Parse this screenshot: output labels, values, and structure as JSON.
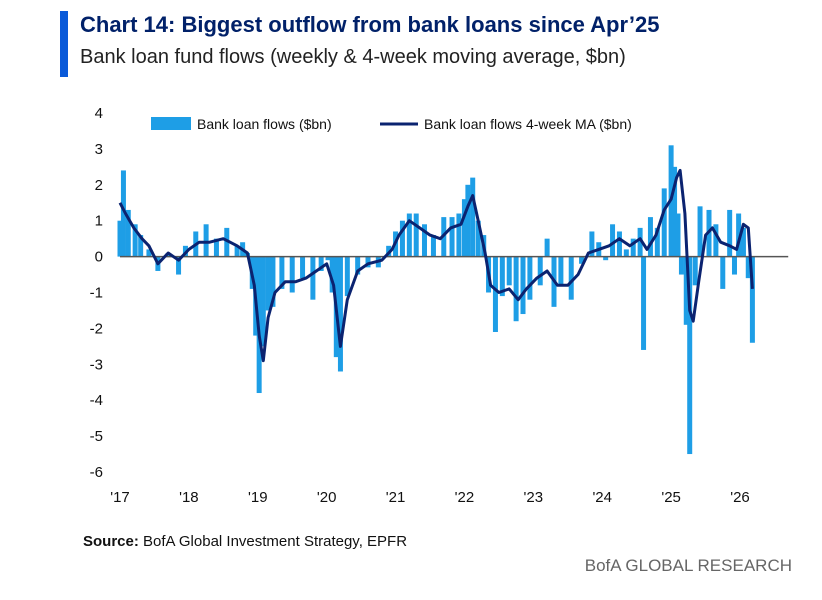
{
  "header": {
    "title": "Chart 14: Biggest outflow from bank loans since Apr’25",
    "subtitle": "Bank loan fund flows (weekly & 4-week moving average, $bn)"
  },
  "footer": {
    "source_label": "Source:",
    "source_text": " BofA Global Investment Strategy, EPFR",
    "brand": "BofA GLOBAL RESEARCH"
  },
  "colors": {
    "accent": "#0a5ad9",
    "title": "#012169",
    "bars": "#1e9ee6",
    "ma_line": "#0b2370",
    "zero_line": "#555555"
  },
  "chart_data": {
    "type": "bar",
    "title": "Bank loan fund flows (weekly & 4-week moving average, $bn)",
    "xlabel": "",
    "ylabel": "$bn",
    "ylim": [
      -6,
      4
    ],
    "xlim": [
      2017.0,
      2026.7
    ],
    "yticks": [
      "4",
      "3",
      "2",
      "1",
      "0",
      "-1",
      "-2",
      "-3",
      "-4",
      "-5",
      "-6"
    ],
    "xticks": [
      {
        "year": 2017,
        "label": "'17"
      },
      {
        "year": 2018,
        "label": "'18"
      },
      {
        "year": 2019,
        "label": "'19"
      },
      {
        "year": 2020,
        "label": "'20"
      },
      {
        "year": 2021,
        "label": "'21"
      },
      {
        "year": 2022,
        "label": "'22"
      },
      {
        "year": 2023,
        "label": "'23"
      },
      {
        "year": 2024,
        "label": "'24"
      },
      {
        "year": 2025,
        "label": "'25"
      },
      {
        "year": 2026,
        "label": "'26"
      }
    ],
    "legend": [
      "Bank loan flows ($bn)",
      "Bank loan flows 4-week MA ($bn)"
    ],
    "legend_position": "top",
    "series": [
      {
        "name": "Bank loan flows ($bn)",
        "style": "bars",
        "points": [
          [
            2017.0,
            1.0
          ],
          [
            2017.05,
            2.4
          ],
          [
            2017.12,
            1.3
          ],
          [
            2017.22,
            0.9
          ],
          [
            2017.3,
            0.6
          ],
          [
            2017.42,
            0.2
          ],
          [
            2017.55,
            -0.4
          ],
          [
            2017.7,
            0.1
          ],
          [
            2017.85,
            -0.5
          ],
          [
            2017.95,
            0.3
          ],
          [
            2018.1,
            0.7
          ],
          [
            2018.25,
            0.9
          ],
          [
            2018.4,
            0.5
          ],
          [
            2018.55,
            0.8
          ],
          [
            2018.7,
            0.3
          ],
          [
            2018.78,
            0.4
          ],
          [
            2018.85,
            0.1
          ],
          [
            2018.92,
            -0.9
          ],
          [
            2018.97,
            -2.2
          ],
          [
            2019.02,
            -3.8
          ],
          [
            2019.08,
            -2.5
          ],
          [
            2019.15,
            -1.5
          ],
          [
            2019.22,
            -1.4
          ],
          [
            2019.35,
            -0.9
          ],
          [
            2019.5,
            -1.0
          ],
          [
            2019.65,
            -0.6
          ],
          [
            2019.8,
            -1.2
          ],
          [
            2019.92,
            -0.4
          ],
          [
            2020.02,
            -0.1
          ],
          [
            2020.08,
            -1.0
          ],
          [
            2020.14,
            -2.8
          ],
          [
            2020.2,
            -3.2
          ],
          [
            2020.3,
            -1.1
          ],
          [
            2020.45,
            -0.5
          ],
          [
            2020.6,
            -0.3
          ],
          [
            2020.75,
            -0.3
          ],
          [
            2020.9,
            0.3
          ],
          [
            2021.0,
            0.7
          ],
          [
            2021.1,
            1.0
          ],
          [
            2021.2,
            1.2
          ],
          [
            2021.3,
            1.2
          ],
          [
            2021.42,
            0.9
          ],
          [
            2021.55,
            0.6
          ],
          [
            2021.7,
            1.1
          ],
          [
            2021.82,
            1.1
          ],
          [
            2021.92,
            1.2
          ],
          [
            2022.0,
            1.6
          ],
          [
            2022.05,
            2.0
          ],
          [
            2022.12,
            2.2
          ],
          [
            2022.2,
            1.0
          ],
          [
            2022.28,
            0.6
          ],
          [
            2022.35,
            -1.0
          ],
          [
            2022.45,
            -2.1
          ],
          [
            2022.55,
            -1.1
          ],
          [
            2022.65,
            -0.8
          ],
          [
            2022.75,
            -1.8
          ],
          [
            2022.85,
            -1.6
          ],
          [
            2022.95,
            -1.2
          ],
          [
            2023.1,
            -0.8
          ],
          [
            2023.2,
            0.5
          ],
          [
            2023.3,
            -1.4
          ],
          [
            2023.4,
            -0.8
          ],
          [
            2023.55,
            -1.2
          ],
          [
            2023.7,
            -0.2
          ],
          [
            2023.85,
            0.7
          ],
          [
            2023.95,
            0.4
          ],
          [
            2024.05,
            -0.1
          ],
          [
            2024.15,
            0.9
          ],
          [
            2024.25,
            0.7
          ],
          [
            2024.35,
            0.2
          ],
          [
            2024.45,
            0.5
          ],
          [
            2024.55,
            0.8
          ],
          [
            2024.6,
            -2.6
          ],
          [
            2024.7,
            1.1
          ],
          [
            2024.8,
            0.8
          ],
          [
            2024.9,
            1.9
          ],
          [
            2025.0,
            3.1
          ],
          [
            2025.05,
            2.5
          ],
          [
            2025.1,
            1.2
          ],
          [
            2025.15,
            -0.5
          ],
          [
            2025.22,
            -1.9
          ],
          [
            2025.27,
            -5.5
          ],
          [
            2025.35,
            -0.8
          ],
          [
            2025.42,
            1.4
          ],
          [
            2025.55,
            1.3
          ],
          [
            2025.65,
            0.9
          ],
          [
            2025.75,
            -0.9
          ],
          [
            2025.85,
            1.3
          ],
          [
            2025.92,
            -0.5
          ],
          [
            2025.98,
            1.2
          ],
          [
            2026.05,
            0.8
          ],
          [
            2026.12,
            -0.6
          ],
          [
            2026.18,
            -2.4
          ]
        ]
      },
      {
        "name": "Bank loan flows 4-week MA ($bn)",
        "style": "line",
        "points": [
          [
            2017.0,
            1.5
          ],
          [
            2017.08,
            1.2
          ],
          [
            2017.2,
            0.8
          ],
          [
            2017.32,
            0.5
          ],
          [
            2017.42,
            0.3
          ],
          [
            2017.55,
            -0.2
          ],
          [
            2017.7,
            0.1
          ],
          [
            2017.85,
            -0.1
          ],
          [
            2018.0,
            0.2
          ],
          [
            2018.15,
            0.4
          ],
          [
            2018.3,
            0.4
          ],
          [
            2018.5,
            0.5
          ],
          [
            2018.7,
            0.3
          ],
          [
            2018.85,
            0.1
          ],
          [
            2018.95,
            -0.8
          ],
          [
            2019.02,
            -2.2
          ],
          [
            2019.08,
            -2.9
          ],
          [
            2019.15,
            -1.7
          ],
          [
            2019.25,
            -1.0
          ],
          [
            2019.4,
            -0.7
          ],
          [
            2019.55,
            -0.7
          ],
          [
            2019.7,
            -0.6
          ],
          [
            2019.85,
            -0.4
          ],
          [
            2020.0,
            -0.2
          ],
          [
            2020.1,
            -0.8
          ],
          [
            2020.2,
            -2.5
          ],
          [
            2020.3,
            -1.2
          ],
          [
            2020.45,
            -0.4
          ],
          [
            2020.6,
            -0.2
          ],
          [
            2020.8,
            -0.1
          ],
          [
            2020.95,
            0.2
          ],
          [
            2021.05,
            0.6
          ],
          [
            2021.2,
            1.0
          ],
          [
            2021.35,
            0.8
          ],
          [
            2021.5,
            0.6
          ],
          [
            2021.65,
            0.5
          ],
          [
            2021.8,
            0.8
          ],
          [
            2021.95,
            0.9
          ],
          [
            2022.05,
            1.4
          ],
          [
            2022.12,
            1.7
          ],
          [
            2022.2,
            1.0
          ],
          [
            2022.3,
            0.1
          ],
          [
            2022.38,
            -0.8
          ],
          [
            2022.5,
            -1.0
          ],
          [
            2022.65,
            -0.9
          ],
          [
            2022.78,
            -1.2
          ],
          [
            2022.9,
            -0.9
          ],
          [
            2023.05,
            -0.6
          ],
          [
            2023.2,
            -0.4
          ],
          [
            2023.35,
            -0.8
          ],
          [
            2023.5,
            -0.8
          ],
          [
            2023.65,
            -0.5
          ],
          [
            2023.8,
            0.1
          ],
          [
            2023.95,
            0.2
          ],
          [
            2024.1,
            0.3
          ],
          [
            2024.25,
            0.5
          ],
          [
            2024.4,
            0.3
          ],
          [
            2024.55,
            0.5
          ],
          [
            2024.65,
            0.2
          ],
          [
            2024.78,
            0.6
          ],
          [
            2024.9,
            1.3
          ],
          [
            2025.0,
            1.6
          ],
          [
            2025.08,
            2.2
          ],
          [
            2025.13,
            2.4
          ],
          [
            2025.2,
            1.2
          ],
          [
            2025.27,
            -1.5
          ],
          [
            2025.32,
            -1.8
          ],
          [
            2025.4,
            -0.7
          ],
          [
            2025.5,
            0.6
          ],
          [
            2025.6,
            0.8
          ],
          [
            2025.72,
            0.4
          ],
          [
            2025.85,
            0.3
          ],
          [
            2025.95,
            0.2
          ],
          [
            2026.05,
            0.9
          ],
          [
            2026.12,
            0.8
          ],
          [
            2026.18,
            -0.9
          ]
        ]
      }
    ]
  }
}
